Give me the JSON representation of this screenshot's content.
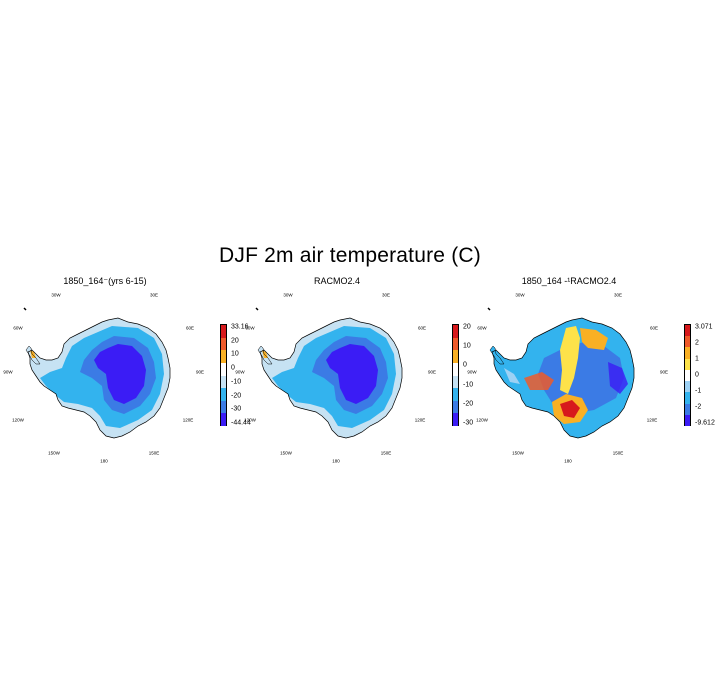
{
  "title": "DJF 2m air temperature (C)",
  "panels": [
    {
      "name": "model",
      "title": "1850_164⁻(yrs 6-15)",
      "colorbar": {
        "ticks": [
          "33.16",
          "20",
          "10",
          "0",
          "-10",
          "-20",
          "-30",
          "-44.44"
        ],
        "colors": [
          "#d7191c",
          "#ef5a2a",
          "#f9b024",
          "#ffffff",
          "#c6e2f3",
          "#33b3ee",
          "#3b7be5",
          "#3b1cf5"
        ]
      }
    },
    {
      "name": "racmo",
      "title": "RACMO2.4",
      "colorbar": {
        "ticks": [
          "20",
          "10",
          "0",
          "-10",
          "-20",
          "-30"
        ],
        "colors": [
          "#d7191c",
          "#ef5a2a",
          "#f9b024",
          "#ffffff",
          "#c6e2f3",
          "#33b3ee",
          "#3b7be5",
          "#3b1cf5"
        ]
      }
    },
    {
      "name": "difference",
      "title": "1850_164 -¹RACMO2.4",
      "colorbar": {
        "ticks": [
          "3.071",
          "2",
          "1",
          "0",
          "-1",
          "-2",
          "-9.612"
        ],
        "colors": [
          "#d7191c",
          "#ef5a2a",
          "#f9b024",
          "#fde24a",
          "#ffffff",
          "#9dd1f4",
          "#33b3ee",
          "#3b7be5",
          "#3b1cf5"
        ]
      }
    }
  ],
  "grid_labels": {
    "lon_30w": "30W",
    "lon_30e": "30E",
    "lon_60w": "60W",
    "lon_60e": "60E",
    "lon_90w": "90W",
    "lon_90e": "90E",
    "lon_120w": "120W",
    "lon_120e": "120E",
    "lon_150w": "150W",
    "lon_150e": "150E",
    "lon_180": "180"
  }
}
